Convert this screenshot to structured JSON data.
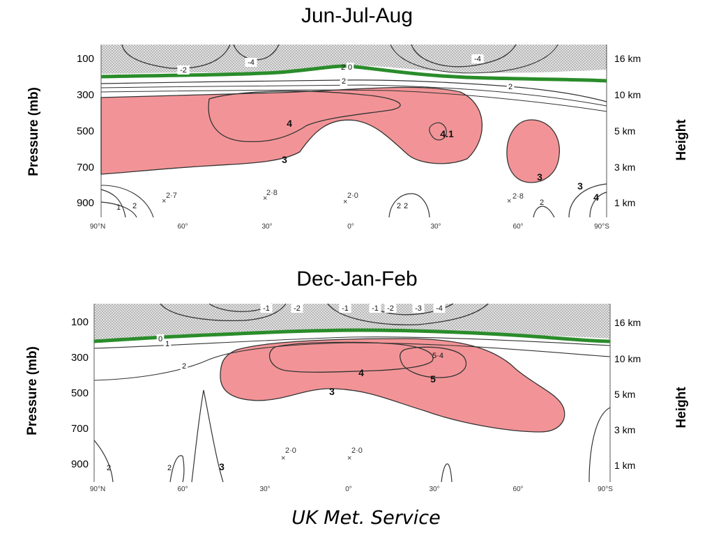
{
  "chart_data": [
    {
      "type": "contour",
      "title": "Jun-Jul-Aug",
      "ylabel": "Pressure (mb)",
      "y2label": "Height",
      "pressure_ticks": [
        "100",
        "300",
        "500",
        "700",
        "900"
      ],
      "height_ticks": [
        "16 km",
        "10 km",
        "5 km",
        "3 km",
        "1 km"
      ],
      "lat_ticks": [
        "90°N",
        "60°",
        "30°",
        "0°",
        "30°",
        "60°",
        "90°S"
      ],
      "contour_labels": [
        "-2",
        "-4",
        "0",
        "-4",
        "2",
        "2",
        "4",
        "3",
        "4.1",
        "3",
        "2",
        "2",
        "2",
        "1",
        "2",
        "2",
        "3",
        "4"
      ],
      "point_values": [
        "2·7",
        "2·8",
        "2·0",
        "2·8"
      ],
      "shaded_min_value": 3,
      "fill_color": "#f29497",
      "zero_line_color": "#2a8c2a"
    },
    {
      "type": "contour",
      "title": "Dec-Jan-Feb",
      "ylabel": "Pressure (mb)",
      "y2label": "Height",
      "pressure_ticks": [
        "100",
        "300",
        "500",
        "700",
        "900"
      ],
      "height_ticks": [
        "16 km",
        "10 km",
        "5 km",
        "3 km",
        "1 km"
      ],
      "lat_ticks": [
        "90°N",
        "60°",
        "30°",
        "0°",
        "30°",
        "60°",
        "90°S"
      ],
      "contour_labels": [
        "-1",
        "-2",
        "-1",
        "-1",
        "-2",
        "-3",
        "-4",
        "0",
        "1",
        "2",
        "4",
        "5",
        "5·4",
        "3",
        "2",
        "2",
        "3"
      ],
      "point_values": [
        "2·0",
        "2·0"
      ],
      "shaded_min_value": 3,
      "fill_color": "#f29497",
      "zero_line_color": "#2a8c2a"
    }
  ],
  "credit": "UK Met. Service"
}
